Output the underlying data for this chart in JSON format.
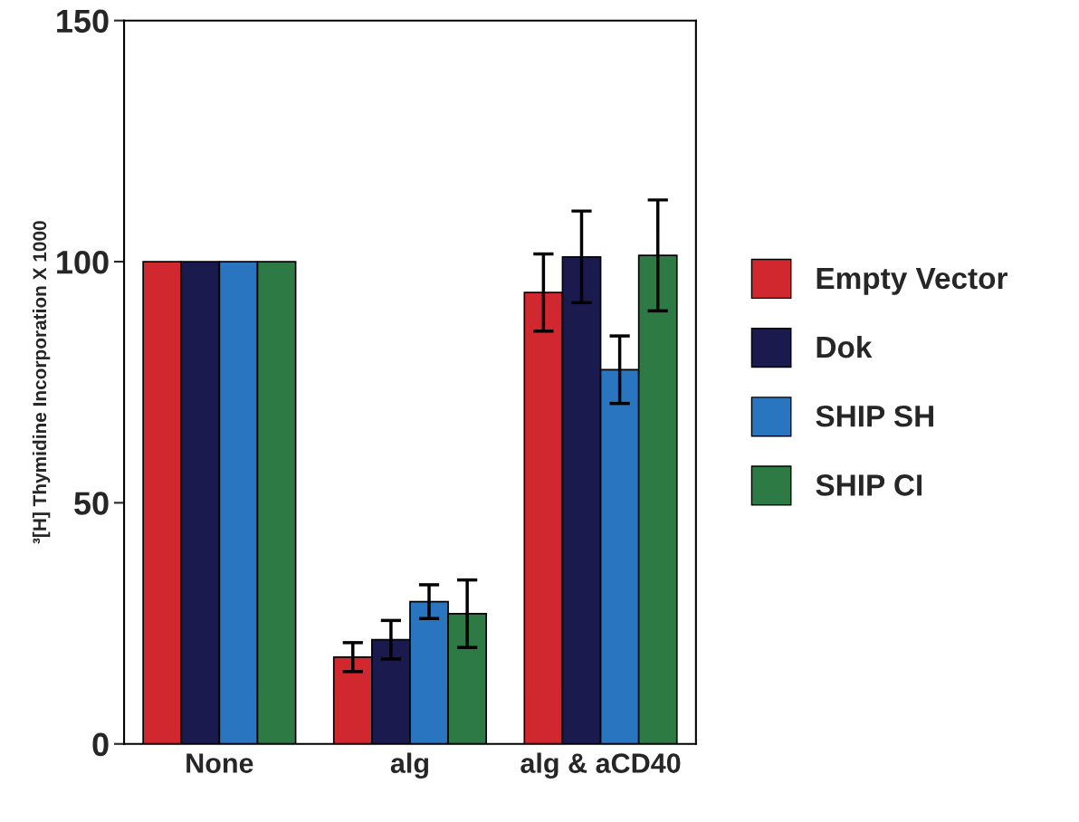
{
  "chart_data": {
    "type": "bar",
    "ylabel": "³[H] Thymidine Incorporation X 1000",
    "categories": [
      "None",
      "alg",
      "alg & aCD40"
    ],
    "series": [
      {
        "name": "Empty Vector",
        "color": "#d0282e",
        "values": [
          100,
          18,
          93.6
        ],
        "errors": [
          null,
          3,
          8
        ]
      },
      {
        "name": "Dok",
        "color": "#1a1a4e",
        "values": [
          100,
          21.6,
          101
        ],
        "errors": [
          null,
          4,
          9.5
        ]
      },
      {
        "name": "SHIP SH",
        "color": "#2a75c0",
        "values": [
          100,
          29.5,
          77.6
        ],
        "errors": [
          null,
          3.5,
          7
        ]
      },
      {
        "name": "SHIP CI",
        "color": "#2e7a45",
        "values": [
          100,
          27,
          101.3
        ],
        "errors": [
          null,
          7,
          11.5
        ]
      }
    ],
    "ylim": [
      0,
      150
    ],
    "yticks": [
      0,
      50,
      100,
      150
    ],
    "grid": false,
    "legend": "right"
  }
}
